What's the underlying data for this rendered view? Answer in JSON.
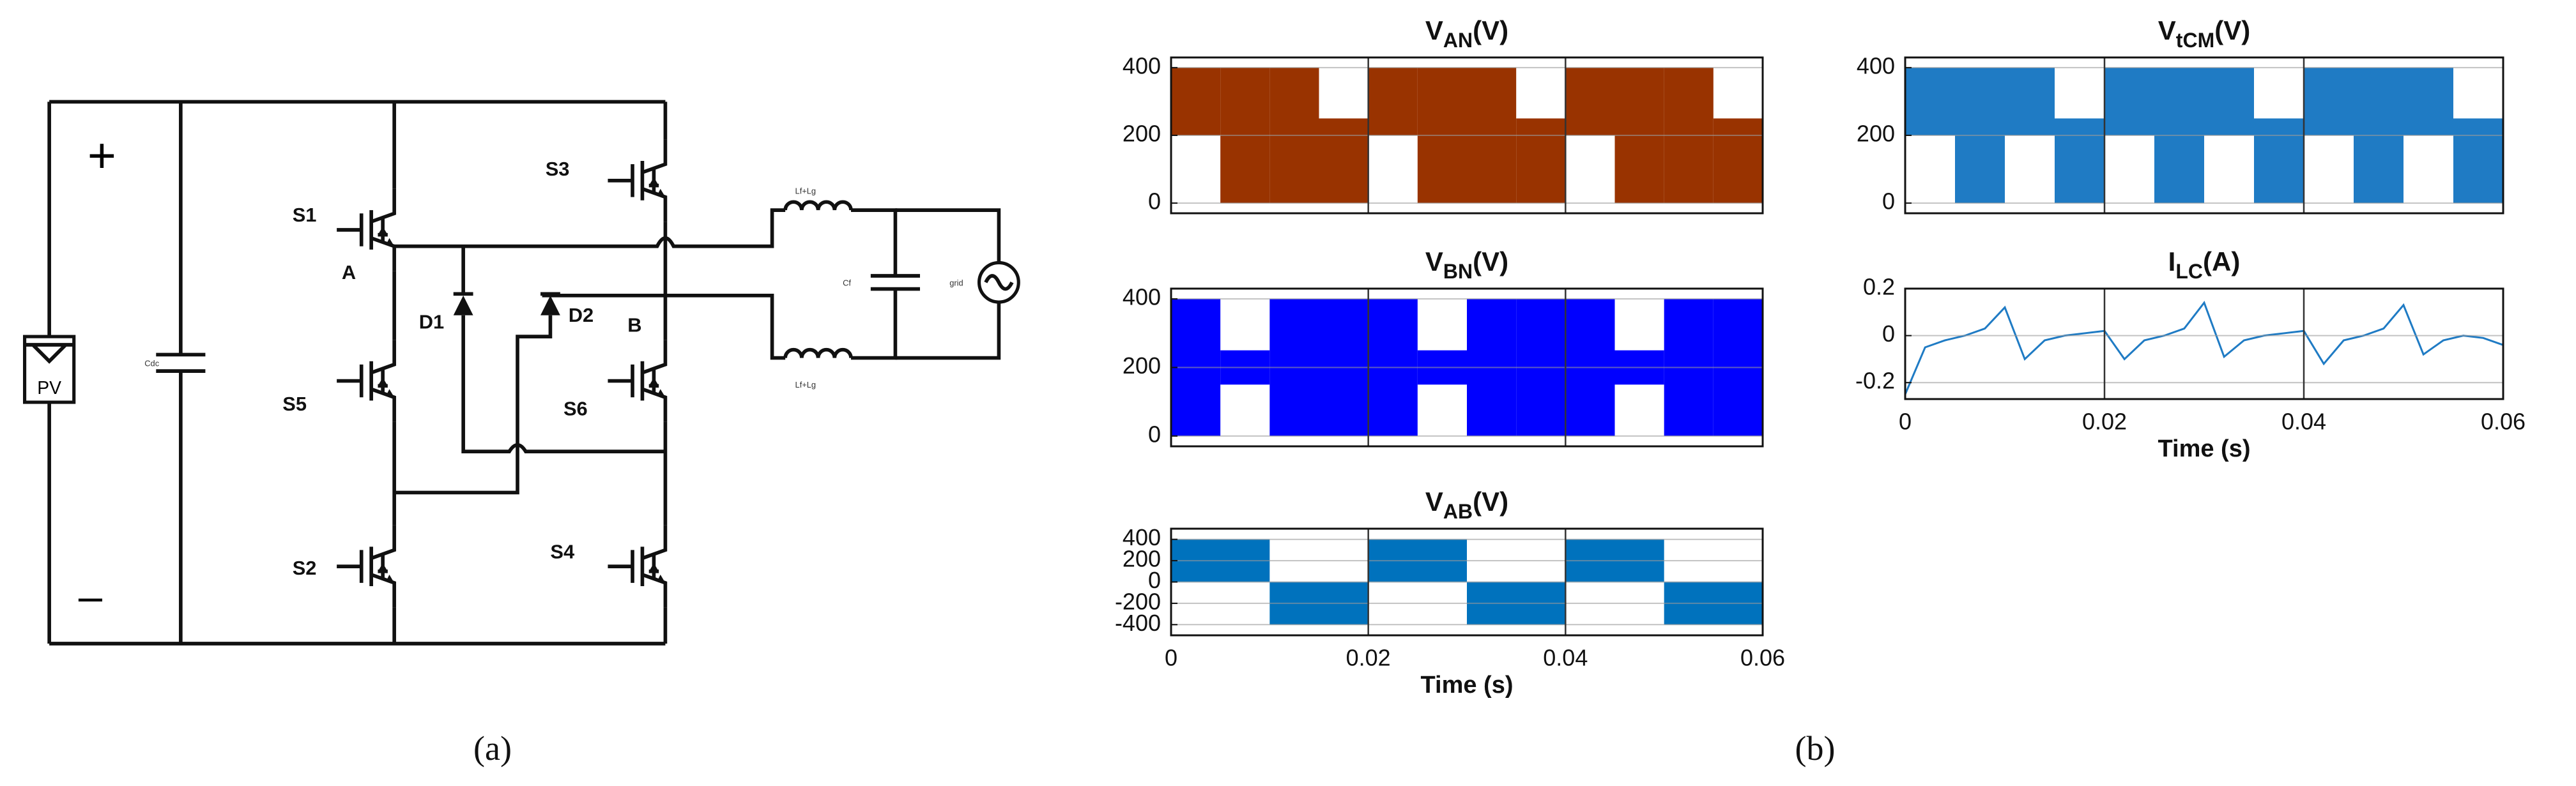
{
  "circuit": {
    "labels": [
      "+",
      "–",
      "PV",
      "Cdc",
      "S1",
      "S3",
      "A",
      "D1",
      "D2",
      "B",
      "S5",
      "S6",
      "S2",
      "S4",
      "Lf+Lg",
      "Lf+Lg",
      "Cf",
      "grid"
    ]
  },
  "captions": [
    "(a)",
    "(b)"
  ],
  "chart_data": [
    {
      "type": "band",
      "title": [
        "V",
        "AN",
        "(V)"
      ],
      "color": "#993300",
      "x": [
        0,
        0.005,
        0.01,
        0.015,
        0.02,
        0.025,
        0.03,
        0.035,
        0.04,
        0.045,
        0.05,
        0.055
      ],
      "upper": [
        400,
        400,
        400,
        250,
        400,
        400,
        400,
        250,
        400,
        400,
        400,
        250
      ],
      "lower": [
        200,
        0,
        0,
        0,
        200,
        0,
        0,
        0,
        200,
        0,
        0,
        0
      ],
      "xlim": [
        0,
        0.06
      ],
      "ylim": [
        -30,
        430
      ],
      "xticks": [
        0,
        0.02,
        0.04,
        0.06
      ],
      "yticks": [
        0,
        200,
        400
      ],
      "xtick_labels": false,
      "grid": true
    },
    {
      "type": "band",
      "title": [
        "V",
        "BN",
        "(V)"
      ],
      "color": "#0000ff",
      "x": [
        0,
        0.005,
        0.01,
        0.015,
        0.02,
        0.025,
        0.03,
        0.035,
        0.04,
        0.045,
        0.05,
        0.055
      ],
      "upper": [
        400,
        250,
        400,
        400,
        400,
        250,
        400,
        400,
        400,
        250,
        400,
        400
      ],
      "lower": [
        0,
        150,
        0,
        0,
        0,
        150,
        0,
        0,
        0,
        150,
        0,
        0
      ],
      "xlim": [
        0,
        0.06
      ],
      "ylim": [
        -30,
        430
      ],
      "xticks": [
        0,
        0.02,
        0.04,
        0.06
      ],
      "yticks": [
        0,
        200,
        400
      ],
      "xtick_labels": false,
      "grid": true
    },
    {
      "type": "step",
      "title": [
        "V",
        "AB",
        "(V)"
      ],
      "color": "#0072bd",
      "xlabel": "Time (s)",
      "x": [
        0,
        0.01,
        0.02,
        0.03,
        0.04,
        0.05
      ],
      "values": [
        400,
        -400,
        400,
        -400,
        400,
        -400
      ],
      "xlim": [
        0,
        0.06
      ],
      "ylim": [
        -500,
        500
      ],
      "xticks": [
        0,
        0.02,
        0.04,
        0.06
      ],
      "yticks": [
        -400,
        -200,
        0,
        200,
        400
      ],
      "xtick_labels": true,
      "grid": true
    },
    {
      "type": "band",
      "title": [
        "V",
        "tCM",
        "(V)"
      ],
      "color": "#1f7bc4",
      "x": [
        0,
        0.005,
        0.01,
        0.015,
        0.02,
        0.025,
        0.03,
        0.035,
        0.04,
        0.045,
        0.05,
        0.055
      ],
      "upper": [
        400,
        400,
        400,
        250,
        400,
        400,
        400,
        250,
        400,
        400,
        400,
        250
      ],
      "lower": [
        200,
        0,
        200,
        0,
        200,
        0,
        200,
        0,
        200,
        0,
        200,
        0
      ],
      "xlim": [
        0,
        0.06
      ],
      "ylim": [
        -30,
        430
      ],
      "xticks": [
        0,
        0.02,
        0.04,
        0.06
      ],
      "yticks": [
        0,
        200,
        400
      ],
      "xtick_labels": false,
      "grid": true
    },
    {
      "type": "line",
      "title": [
        "I",
        "LC",
        "(A)"
      ],
      "color": "#1f7bc4",
      "xlabel": "Time (s)",
      "x": [
        0,
        0.002,
        0.004,
        0.006,
        0.008,
        0.01,
        0.012,
        0.014,
        0.016,
        0.018,
        0.02,
        0.022,
        0.024,
        0.026,
        0.028,
        0.03,
        0.032,
        0.034,
        0.036,
        0.038,
        0.04,
        0.042,
        0.044,
        0.046,
        0.048,
        0.05,
        0.052,
        0.054,
        0.056,
        0.058,
        0.06
      ],
      "values": [
        -0.25,
        -0.05,
        -0.02,
        0.0,
        0.03,
        0.12,
        -0.1,
        -0.02,
        0.0,
        0.01,
        0.02,
        -0.1,
        -0.02,
        0.0,
        0.03,
        0.14,
        -0.09,
        -0.02,
        0.0,
        0.01,
        0.02,
        -0.12,
        -0.02,
        0.0,
        0.03,
        0.13,
        -0.08,
        -0.02,
        0.0,
        -0.01,
        -0.04
      ],
      "xlim": [
        0,
        0.06
      ],
      "ylim": [
        -0.27,
        0.2
      ],
      "xticks": [
        0,
        0.02,
        0.04,
        0.06
      ],
      "yticks": [
        -0.2,
        0,
        0.2
      ],
      "xtick_labels": true,
      "grid": true
    }
  ]
}
